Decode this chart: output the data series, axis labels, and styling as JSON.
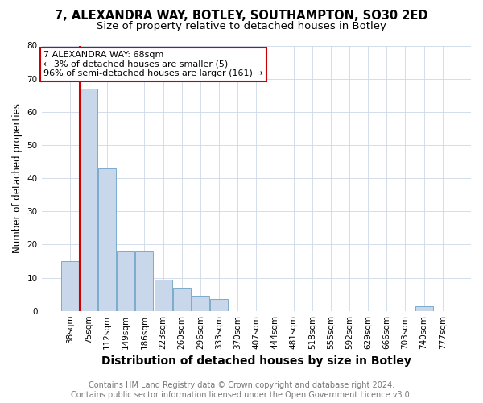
{
  "title": "7, ALEXANDRA WAY, BOTLEY, SOUTHAMPTON, SO30 2ED",
  "subtitle": "Size of property relative to detached houses in Botley",
  "xlabel": "Distribution of detached houses by size in Botley",
  "ylabel": "Number of detached properties",
  "bins": [
    "38sqm",
    "75sqm",
    "112sqm",
    "149sqm",
    "186sqm",
    "223sqm",
    "260sqm",
    "296sqm",
    "333sqm",
    "370sqm",
    "407sqm",
    "444sqm",
    "481sqm",
    "518sqm",
    "555sqm",
    "592sqm",
    "629sqm",
    "666sqm",
    "703sqm",
    "740sqm",
    "777sqm"
  ],
  "values": [
    15,
    67,
    43,
    18,
    18,
    9.5,
    7,
    4.5,
    3.5,
    0,
    0,
    0,
    0,
    0,
    0,
    0,
    0,
    0,
    0,
    1.5,
    0
  ],
  "bar_color": "#c8d8ea",
  "bar_edge_color": "#7aaacc",
  "property_line_color": "#cc0000",
  "annotation_text": "7 ALEXANDRA WAY: 68sqm\n← 3% of detached houses are smaller (5)\n96% of semi-detached houses are larger (161) →",
  "annotation_box_color": "#ffffff",
  "annotation_box_edge_color": "#cc0000",
  "ylim": [
    0,
    80
  ],
  "yticks": [
    0,
    10,
    20,
    30,
    40,
    50,
    60,
    70,
    80
  ],
  "footer_line1": "Contains HM Land Registry data © Crown copyright and database right 2024.",
  "footer_line2": "Contains public sector information licensed under the Open Government Licence v3.0.",
  "title_fontsize": 10.5,
  "subtitle_fontsize": 9.5,
  "xlabel_fontsize": 10,
  "ylabel_fontsize": 8.5,
  "tick_fontsize": 7.5,
  "annotation_fontsize": 8,
  "footer_fontsize": 7,
  "background_color": "#ffffff",
  "grid_color": "#ccd8e8"
}
